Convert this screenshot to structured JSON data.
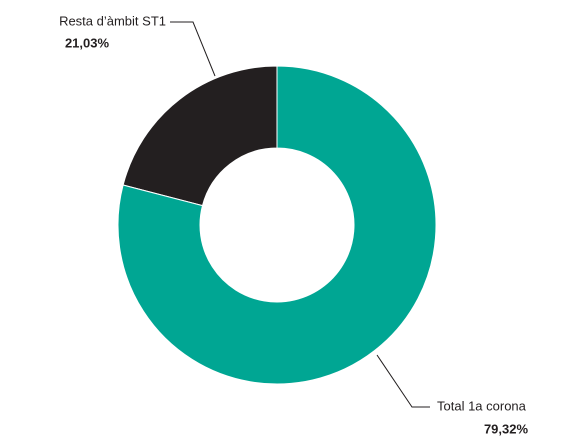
{
  "chart_data": {
    "type": "donut",
    "categories": [
      "Resta d’àmbit ST1",
      "Total 1a corona"
    ],
    "values": [
      21.03,
      79.32
    ],
    "value_labels": [
      "21,03%",
      "79,32%"
    ],
    "colors": [
      "#231f20",
      "#00a693"
    ]
  }
}
